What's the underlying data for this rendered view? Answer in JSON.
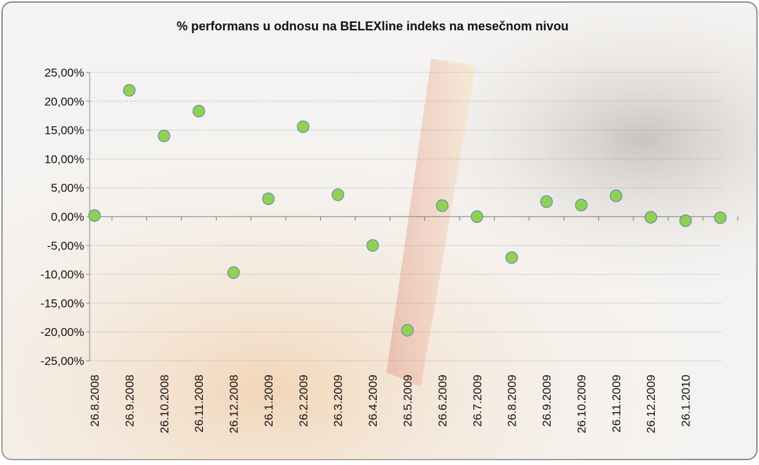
{
  "chart_data": {
    "type": "scatter",
    "title": "% performans u odnosu na BELEXline indeks na mesečnom nivou",
    "categories": [
      "26.8.2008",
      "26.9.2008",
      "26.10.2008",
      "26.11.2008",
      "26.12.2008",
      "26.1.2009",
      "26.2.2009",
      "26.3.2009",
      "26.4.2009",
      "26.5.2009",
      "26.6.2009",
      "26.7.2009",
      "26.8.2009",
      "26.9.2009",
      "26.10.2009",
      "26.11.2009",
      "26.12.2009",
      "26.1.2010",
      null
    ],
    "values": [
      0.2,
      21.9,
      14.0,
      18.3,
      -9.7,
      3.1,
      15.6,
      3.8,
      -5.0,
      -19.7,
      1.9,
      0.0,
      -7.1,
      2.6,
      2.0,
      3.6,
      -0.1,
      -0.7,
      -0.2
    ],
    "color": "#92d050",
    "ylim": [
      -25,
      25
    ],
    "yticks": [
      {
        "value": 25,
        "label": "25,00%"
      },
      {
        "value": 20,
        "label": "20,00%"
      },
      {
        "value": 15,
        "label": "15,00%"
      },
      {
        "value": 10,
        "label": "10,00%"
      },
      {
        "value": 5,
        "label": "5,00%"
      },
      {
        "value": 0,
        "label": "0,00%"
      },
      {
        "value": -5,
        "label": "-5,00%"
      },
      {
        "value": -10,
        "label": "-10,00%"
      },
      {
        "value": -15,
        "label": "-15,00%"
      },
      {
        "value": -20,
        "label": "-20,00%"
      },
      {
        "value": -25,
        "label": "-25,00%"
      }
    ],
    "grid": true
  }
}
